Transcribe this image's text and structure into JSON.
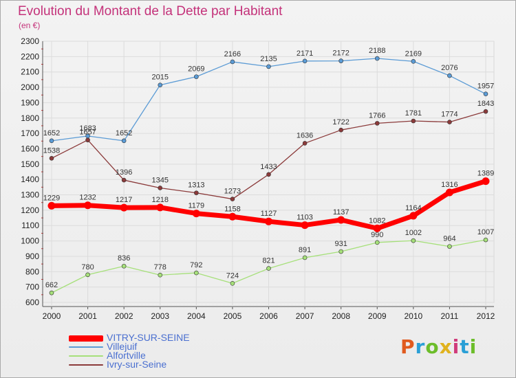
{
  "title": "Evolution du Montant de la Dette par Habitant",
  "subtitle": "(en €)",
  "logo_text": "Proxiti",
  "logo_colors": [
    "#e05a1e",
    "#2a9fd6",
    "#6cbd2a",
    "#e0b21e",
    "#d03a7a",
    "#2a9fd6",
    "#6cbd2a"
  ],
  "chart_data": {
    "type": "line",
    "x": [
      "2000",
      "2001",
      "2002",
      "2003",
      "2004",
      "2005",
      "2006",
      "2007",
      "2008",
      "2009",
      "2010",
      "2011",
      "2012"
    ],
    "ylim": [
      600,
      2300
    ],
    "yticks": [
      600,
      700,
      800,
      900,
      1000,
      1100,
      1200,
      1300,
      1400,
      1500,
      1600,
      1700,
      1800,
      1900,
      2000,
      2100,
      2200,
      2300
    ],
    "grid": true,
    "legend_position": "bottom-left",
    "series": [
      {
        "name": "VITRY-SUR-SEINE",
        "color": "#ff0000",
        "values": [
          1229,
          1232,
          1217,
          1218,
          1179,
          1158,
          1127,
          1103,
          1137,
          1082,
          1164,
          1316,
          1389
        ]
      },
      {
        "name": "Villejuif",
        "color": "#5b9bd5",
        "values": [
          1652,
          1683,
          1652,
          2015,
          2069,
          2166,
          2135,
          2171,
          2172,
          2188,
          2169,
          2076,
          1957
        ]
      },
      {
        "name": "Alfortville",
        "color": "#a6e07a",
        "values": [
          662,
          780,
          836,
          778,
          792,
          724,
          821,
          891,
          931,
          990,
          1002,
          964,
          1007
        ]
      },
      {
        "name": "Ivry-sur-Seine",
        "color": "#8b3a3a",
        "values": [
          1538,
          1657,
          1396,
          1345,
          1313,
          1273,
          1433,
          1636,
          1722,
          1766,
          1781,
          1774,
          1843
        ]
      }
    ]
  }
}
